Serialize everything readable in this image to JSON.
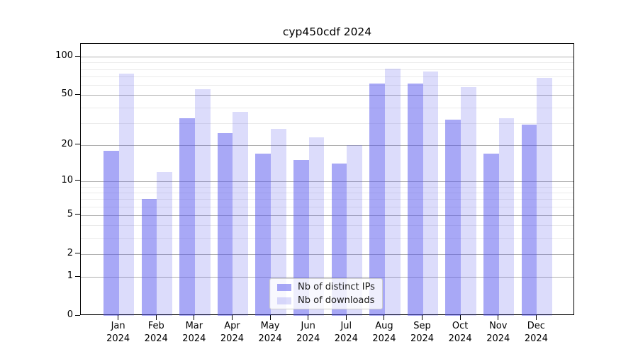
{
  "figure": {
    "title": "cyp450cdf 2024"
  },
  "chart_data": {
    "type": "bar",
    "title": "cyp450cdf 2024",
    "categories": [
      "Jan",
      "Feb",
      "Mar",
      "Apr",
      "May",
      "Jun",
      "Jul",
      "Aug",
      "Sep",
      "Oct",
      "Nov",
      "Dec"
    ],
    "category_sublabel": "2024",
    "series": [
      {
        "name": "Nb of distinct IPs",
        "color": "rgba(82,82,237,0.50)",
        "color_on_white": "#a8a8f5",
        "values": [
          18,
          7,
          33,
          25,
          17,
          15,
          14,
          62,
          62,
          32,
          17,
          29
        ]
      },
      {
        "name": "Nb of downloads",
        "color": "rgba(82,82,237,0.20)",
        "color_on_white": "#dcdcfa",
        "values": [
          74,
          12,
          56,
          37,
          27,
          23,
          20,
          81,
          77,
          58,
          33,
          68
        ]
      }
    ],
    "yscale": "log1p",
    "ylim": [
      0,
      126
    ],
    "y_major_ticks": [
      0,
      1,
      2,
      5,
      10,
      20,
      50,
      100
    ],
    "y_minor_ticks": [
      3,
      4,
      6,
      7,
      8,
      9,
      30,
      40,
      60,
      70,
      80,
      90
    ],
    "grid": true,
    "legend_position": "bottom-center"
  },
  "colors": {
    "major_grid": "#b0b0b0",
    "minor_grid": "#ebebeb",
    "axis": "#000000",
    "legend_border": "#cccccc"
  }
}
